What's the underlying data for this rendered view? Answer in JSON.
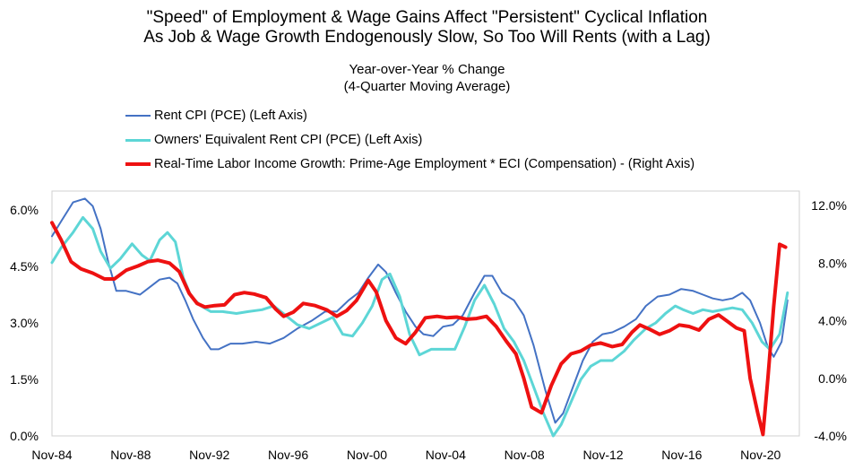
{
  "chart_data": {
    "type": "line",
    "title": "\"Speed\" of Employment & Wage Gains Affect \"Persistent\" Cyclical Inflation",
    "subtitle": "As Job & Wage Growth Endogenously Slow, So Too Will Rents (with a Lag)",
    "note_line1": "Year-over-Year % Change",
    "note_line2": "(4-Quarter Moving Average)",
    "x_tick_labels": [
      "Nov-84",
      "Nov-88",
      "Nov-92",
      "Nov-96",
      "Nov-00",
      "Nov-04",
      "Nov-08",
      "Nov-12",
      "Nov-16",
      "Nov-20"
    ],
    "x_range": [
      1984.83,
      2022.8
    ],
    "y_left": {
      "range": [
        0,
        6.5
      ],
      "ticks": [
        "0.0%",
        "1.5%",
        "3.0%",
        "4.5%",
        "6.0%"
      ],
      "tick_values": [
        0,
        1.5,
        3,
        4.5,
        6
      ]
    },
    "y_right": {
      "range": [
        -4,
        13
      ],
      "ticks": [
        "-4.0%",
        "0.0%",
        "4.0%",
        "8.0%",
        "12.0%"
      ],
      "tick_values": [
        -4,
        0,
        4,
        8,
        12
      ]
    },
    "series": [
      {
        "name": "Rent CPI (PCE) (Left Axis)",
        "axis": "left",
        "color": "#4472c4",
        "width": 2,
        "points": [
          [
            1984.83,
            5.3
          ],
          [
            1985.3,
            5.7
          ],
          [
            1985.9,
            6.2
          ],
          [
            1986.5,
            6.3
          ],
          [
            1986.9,
            6.1
          ],
          [
            1987.3,
            5.5
          ],
          [
            1987.7,
            4.6
          ],
          [
            1988.1,
            3.85
          ],
          [
            1988.6,
            3.85
          ],
          [
            1989.3,
            3.75
          ],
          [
            1989.8,
            3.95
          ],
          [
            1990.3,
            4.15
          ],
          [
            1990.8,
            4.2
          ],
          [
            1991.2,
            4.05
          ],
          [
            1991.6,
            3.6
          ],
          [
            1992.0,
            3.1
          ],
          [
            1992.5,
            2.6
          ],
          [
            1992.9,
            2.3
          ],
          [
            1993.3,
            2.3
          ],
          [
            1993.9,
            2.45
          ],
          [
            1994.5,
            2.45
          ],
          [
            1995.2,
            2.5
          ],
          [
            1995.9,
            2.45
          ],
          [
            1996.6,
            2.6
          ],
          [
            1997.3,
            2.85
          ],
          [
            1998.0,
            3.05
          ],
          [
            1998.7,
            3.3
          ],
          [
            1999.3,
            3.3
          ],
          [
            1999.9,
            3.6
          ],
          [
            2000.4,
            3.8
          ],
          [
            2000.9,
            4.2
          ],
          [
            2001.4,
            4.55
          ],
          [
            2001.8,
            4.35
          ],
          [
            2002.3,
            3.8
          ],
          [
            2002.8,
            3.3
          ],
          [
            2003.3,
            2.9
          ],
          [
            2003.7,
            2.7
          ],
          [
            2004.2,
            2.65
          ],
          [
            2004.7,
            2.9
          ],
          [
            2005.2,
            2.95
          ],
          [
            2005.7,
            3.2
          ],
          [
            2006.3,
            3.8
          ],
          [
            2006.8,
            4.25
          ],
          [
            2007.2,
            4.25
          ],
          [
            2007.7,
            3.8
          ],
          [
            2008.3,
            3.6
          ],
          [
            2008.8,
            3.2
          ],
          [
            2009.3,
            2.4
          ],
          [
            2009.9,
            1.2
          ],
          [
            2010.4,
            0.35
          ],
          [
            2010.8,
            0.6
          ],
          [
            2011.3,
            1.3
          ],
          [
            2011.8,
            2.0
          ],
          [
            2012.3,
            2.5
          ],
          [
            2012.8,
            2.7
          ],
          [
            2013.3,
            2.75
          ],
          [
            2013.9,
            2.9
          ],
          [
            2014.5,
            3.1
          ],
          [
            2015.0,
            3.45
          ],
          [
            2015.6,
            3.7
          ],
          [
            2016.2,
            3.75
          ],
          [
            2016.8,
            3.9
          ],
          [
            2017.4,
            3.85
          ],
          [
            2017.9,
            3.75
          ],
          [
            2018.4,
            3.65
          ],
          [
            2018.9,
            3.6
          ],
          [
            2019.4,
            3.65
          ],
          [
            2019.9,
            3.8
          ],
          [
            2020.3,
            3.6
          ],
          [
            2020.8,
            3.0
          ],
          [
            2021.2,
            2.35
          ],
          [
            2021.5,
            2.1
          ],
          [
            2021.9,
            2.5
          ],
          [
            2022.2,
            3.6
          ]
        ]
      },
      {
        "name": "Owners' Equivalent Rent CPI (PCE) (Left Axis)",
        "axis": "left",
        "color": "#5dd6d6",
        "width": 3,
        "points": [
          [
            1984.83,
            4.6
          ],
          [
            1985.3,
            5.0
          ],
          [
            1985.9,
            5.4
          ],
          [
            1986.4,
            5.8
          ],
          [
            1986.9,
            5.5
          ],
          [
            1987.3,
            4.9
          ],
          [
            1987.8,
            4.45
          ],
          [
            1988.3,
            4.7
          ],
          [
            1988.9,
            5.1
          ],
          [
            1989.4,
            4.8
          ],
          [
            1989.8,
            4.65
          ],
          [
            1990.3,
            5.2
          ],
          [
            1990.7,
            5.4
          ],
          [
            1991.1,
            5.15
          ],
          [
            1991.5,
            4.2
          ],
          [
            1991.9,
            3.7
          ],
          [
            1992.4,
            3.45
          ],
          [
            1992.9,
            3.3
          ],
          [
            1993.5,
            3.3
          ],
          [
            1994.2,
            3.25
          ],
          [
            1994.8,
            3.3
          ],
          [
            1995.5,
            3.35
          ],
          [
            1996.1,
            3.45
          ],
          [
            1996.7,
            3.2
          ],
          [
            1997.3,
            2.95
          ],
          [
            1997.9,
            2.85
          ],
          [
            1998.5,
            3.0
          ],
          [
            1999.1,
            3.15
          ],
          [
            1999.6,
            2.7
          ],
          [
            2000.1,
            2.65
          ],
          [
            2000.6,
            3.0
          ],
          [
            2001.1,
            3.45
          ],
          [
            2001.6,
            4.15
          ],
          [
            2002.0,
            4.3
          ],
          [
            2002.5,
            3.7
          ],
          [
            2003.0,
            2.7
          ],
          [
            2003.5,
            2.15
          ],
          [
            2004.1,
            2.3
          ],
          [
            2004.7,
            2.3
          ],
          [
            2005.3,
            2.3
          ],
          [
            2005.8,
            2.9
          ],
          [
            2006.3,
            3.6
          ],
          [
            2006.8,
            4.0
          ],
          [
            2007.3,
            3.5
          ],
          [
            2007.8,
            2.85
          ],
          [
            2008.3,
            2.5
          ],
          [
            2008.8,
            2.0
          ],
          [
            2009.3,
            1.3
          ],
          [
            2009.8,
            0.6
          ],
          [
            2010.3,
            0.0
          ],
          [
            2010.7,
            0.3
          ],
          [
            2011.2,
            0.9
          ],
          [
            2011.7,
            1.5
          ],
          [
            2012.2,
            1.85
          ],
          [
            2012.7,
            2.0
          ],
          [
            2013.3,
            2.0
          ],
          [
            2013.9,
            2.25
          ],
          [
            2014.4,
            2.55
          ],
          [
            2015.0,
            2.85
          ],
          [
            2015.5,
            3.0
          ],
          [
            2016.0,
            3.25
          ],
          [
            2016.5,
            3.45
          ],
          [
            2016.9,
            3.35
          ],
          [
            2017.4,
            3.25
          ],
          [
            2017.9,
            3.35
          ],
          [
            2018.4,
            3.3
          ],
          [
            2018.9,
            3.35
          ],
          [
            2019.4,
            3.4
          ],
          [
            2019.9,
            3.35
          ],
          [
            2020.4,
            3.0
          ],
          [
            2020.9,
            2.5
          ],
          [
            2021.3,
            2.3
          ],
          [
            2021.8,
            2.7
          ],
          [
            2022.2,
            3.8
          ]
        ]
      },
      {
        "name": "Real-Time Labor Income Growth: Prime-Age Employment * ECI (Compensation) - (Right Axis)",
        "axis": "right",
        "color": "#ee1111",
        "width": 4,
        "points": [
          [
            1984.83,
            10.8
          ],
          [
            1985.3,
            9.6
          ],
          [
            1985.8,
            8.1
          ],
          [
            1986.3,
            7.6
          ],
          [
            1986.9,
            7.3
          ],
          [
            1987.5,
            6.9
          ],
          [
            1988.0,
            6.9
          ],
          [
            1988.6,
            7.5
          ],
          [
            1989.2,
            7.8
          ],
          [
            1989.7,
            8.1
          ],
          [
            1990.2,
            8.2
          ],
          [
            1990.8,
            8.0
          ],
          [
            1991.3,
            7.4
          ],
          [
            1991.8,
            5.9
          ],
          [
            1992.2,
            5.2
          ],
          [
            1992.6,
            4.95
          ],
          [
            1993.1,
            5.05
          ],
          [
            1993.6,
            5.1
          ],
          [
            1994.1,
            5.8
          ],
          [
            1994.6,
            5.95
          ],
          [
            1995.1,
            5.85
          ],
          [
            1995.7,
            5.6
          ],
          [
            1996.2,
            4.8
          ],
          [
            1996.6,
            4.3
          ],
          [
            1997.1,
            4.6
          ],
          [
            1997.6,
            5.2
          ],
          [
            1998.2,
            5.05
          ],
          [
            1998.8,
            4.75
          ],
          [
            1999.3,
            4.3
          ],
          [
            1999.8,
            4.7
          ],
          [
            2000.3,
            5.4
          ],
          [
            2000.9,
            6.8
          ],
          [
            2001.3,
            6.0
          ],
          [
            2001.8,
            4.0
          ],
          [
            2002.3,
            2.8
          ],
          [
            2002.8,
            2.4
          ],
          [
            2003.3,
            3.2
          ],
          [
            2003.8,
            4.2
          ],
          [
            2004.4,
            4.3
          ],
          [
            2004.9,
            4.2
          ],
          [
            2005.4,
            4.25
          ],
          [
            2005.9,
            4.1
          ],
          [
            2006.4,
            4.15
          ],
          [
            2006.9,
            4.3
          ],
          [
            2007.4,
            3.6
          ],
          [
            2007.9,
            2.6
          ],
          [
            2008.4,
            1.7
          ],
          [
            2008.8,
            0.0
          ],
          [
            2009.2,
            -2.0
          ],
          [
            2009.7,
            -2.4
          ],
          [
            2010.2,
            -0.5
          ],
          [
            2010.7,
            1.0
          ],
          [
            2011.2,
            1.7
          ],
          [
            2011.7,
            1.9
          ],
          [
            2012.2,
            2.3
          ],
          [
            2012.7,
            2.45
          ],
          [
            2013.3,
            2.2
          ],
          [
            2013.8,
            2.35
          ],
          [
            2014.3,
            3.2
          ],
          [
            2014.7,
            3.7
          ],
          [
            2015.2,
            3.4
          ],
          [
            2015.7,
            3.05
          ],
          [
            2016.2,
            3.3
          ],
          [
            2016.7,
            3.7
          ],
          [
            2017.2,
            3.6
          ],
          [
            2017.7,
            3.35
          ],
          [
            2018.2,
            4.1
          ],
          [
            2018.7,
            4.4
          ],
          [
            2019.2,
            3.9
          ],
          [
            2019.6,
            3.5
          ],
          [
            2020.0,
            3.3
          ],
          [
            2020.3,
            0.0
          ],
          [
            2020.7,
            -2.5
          ],
          [
            2020.95,
            -3.9
          ],
          [
            2021.2,
            0.0
          ],
          [
            2021.5,
            5.0
          ],
          [
            2021.8,
            9.3
          ],
          [
            2022.1,
            9.1
          ]
        ]
      }
    ],
    "grid": false
  }
}
